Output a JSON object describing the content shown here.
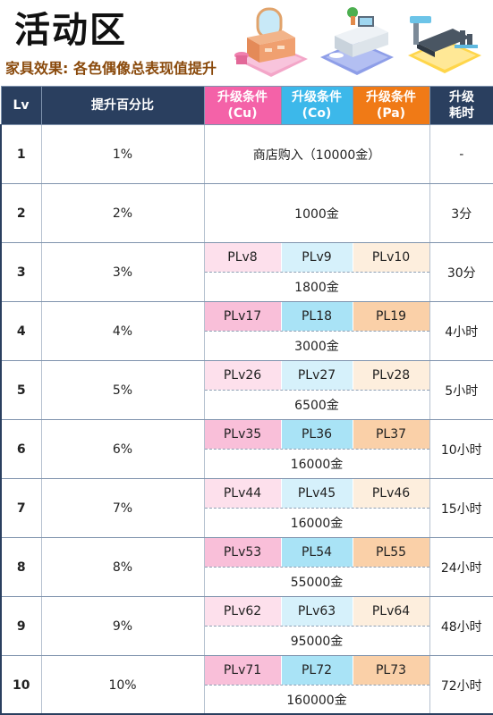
{
  "header": {
    "title": "活动区",
    "subtitle": "家具效果: 各色偶像总表现值提升"
  },
  "icons": [
    "vanity-dresser-icon",
    "study-desk-icon",
    "treadmill-icon"
  ],
  "table": {
    "headers": {
      "lv": "Lv",
      "pct": "提升百分比",
      "cu_l1": "升级条件",
      "cu_l2": "(Cu)",
      "co_l1": "升级条件",
      "co_l2": "(Co)",
      "pa_l1": "升级条件",
      "pa_l2": "(Pa)",
      "time_l1": "升级",
      "time_l2": "耗时"
    },
    "rows": [
      {
        "lv": "1",
        "pct": "1%",
        "cond": "商店购入（10000金）",
        "time": "-"
      },
      {
        "lv": "2",
        "pct": "2%",
        "cond": "1000金",
        "time": "3分"
      },
      {
        "lv": "3",
        "pct": "3%",
        "cu": "PLv8",
        "co": "PLv9",
        "pa": "PLv10",
        "gold": "1800金",
        "time": "30分"
      },
      {
        "lv": "4",
        "pct": "4%",
        "cu": "PLv17",
        "co": "PL18",
        "pa": "PL19",
        "gold": "3000金",
        "time": "4小时"
      },
      {
        "lv": "5",
        "pct": "5%",
        "cu": "PLv26",
        "co": "PLv27",
        "pa": "PLv28",
        "gold": "6500金",
        "time": "5小时"
      },
      {
        "lv": "6",
        "pct": "6%",
        "cu": "PLv35",
        "co": "PL36",
        "pa": "PL37",
        "gold": "16000金",
        "time": "10小时"
      },
      {
        "lv": "7",
        "pct": "7%",
        "cu": "PLv44",
        "co": "PLv45",
        "pa": "PLv46",
        "gold": "16000金",
        "time": "15小时"
      },
      {
        "lv": "8",
        "pct": "8%",
        "cu": "PLv53",
        "co": "PL54",
        "pa": "PL55",
        "gold": "55000金",
        "time": "24小时"
      },
      {
        "lv": "9",
        "pct": "9%",
        "cu": "PLv62",
        "co": "PLv63",
        "pa": "PLv64",
        "gold": "95000金",
        "time": "48小时"
      },
      {
        "lv": "10",
        "pct": "10%",
        "cu": "PLv71",
        "co": "PL72",
        "pa": "PL73",
        "gold": "160000金",
        "time": "72小时"
      }
    ]
  }
}
